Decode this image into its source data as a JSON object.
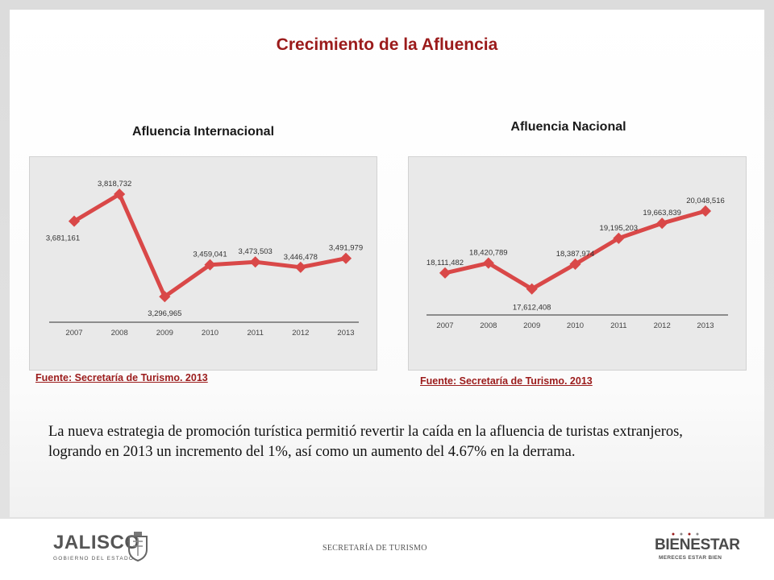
{
  "title": "Crecimiento de la Afluencia",
  "charts": {
    "international": {
      "subtitle": "Afluencia Internacional",
      "source": "Fuente: Secretaría de Turismo. 2013"
    },
    "national": {
      "subtitle": "Afluencia Nacional",
      "source": "Fuente: Secretaría de Turismo. 2013"
    }
  },
  "body_text": "La nueva estrategia de promoción turística permitió revertir la caída en la afluencia de turistas extranjeros, logrando en 2013 un incremento del 1%, así como un aumento del 4.67% en la derrama.",
  "footer": {
    "text": "SECRETARÍA DE TURISMO",
    "logo_left": {
      "name": "JALISCO",
      "sub": "GOBIERNO DEL ESTADO"
    },
    "logo_right": {
      "name": "BIENESTAR",
      "tag": "MERECES ESTAR BIEN"
    }
  },
  "colors": {
    "line": "#d94848",
    "title": "#9b1b1b",
    "panel": "#e9e9e9"
  },
  "chart_data": [
    {
      "type": "line",
      "title": "Afluencia Internacional",
      "x": [
        "2007",
        "2008",
        "2009",
        "2010",
        "2011",
        "2012",
        "2013"
      ],
      "series": [
        {
          "values": [
            3681161,
            3818732,
            3296965,
            3459041,
            3473503,
            3446478,
            3491979
          ]
        }
      ],
      "data_labels": [
        "3,681,161",
        "3,818,732",
        "3,296,965",
        "3,459,041",
        "3,473,503",
        "3,446,478",
        "3,491,979"
      ],
      "ylim": [
        3220000,
        3860000
      ],
      "grid": false
    },
    {
      "type": "line",
      "title": "Afluencia Nacional",
      "x": [
        "2007",
        "2008",
        "2009",
        "2010",
        "2011",
        "2012",
        "2013"
      ],
      "series": [
        {
          "values": [
            18111482,
            18420789,
            17612408,
            18387974,
            19195203,
            19663839,
            20048516
          ]
        }
      ],
      "data_labels": [
        "18,111,482",
        "18,420,789",
        "17,612,408",
        "18,387,974",
        "19,195,203",
        "19,663,839",
        "20,048,516"
      ],
      "ylim": [
        17100000,
        20350000
      ],
      "grid": false
    }
  ]
}
